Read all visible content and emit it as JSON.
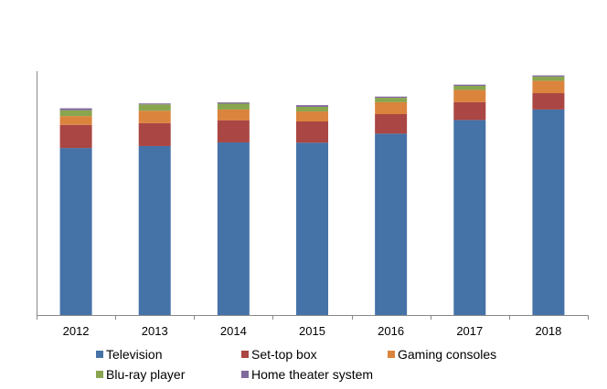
{
  "chart_data": {
    "type": "bar",
    "stacked": true,
    "title": "",
    "xlabel": "",
    "ylabel": "",
    "ylim": [
      0,
      100
    ],
    "y_axis_labels_shown": false,
    "grid": false,
    "legend_placement": "bottom",
    "categories": [
      "2012",
      "2013",
      "2014",
      "2015",
      "2016",
      "2017",
      "2018"
    ],
    "series": [
      {
        "name": "Television",
        "color": "#4572A7",
        "values": [
          68.5,
          69.3,
          70.8,
          70.7,
          74.4,
          80.0,
          84.3
        ]
      },
      {
        "name": "Set-top box",
        "color": "#AA4643",
        "values": [
          9.5,
          9.4,
          9.1,
          8.7,
          8.0,
          7.3,
          6.7
        ]
      },
      {
        "name": "Gaming consoles",
        "color": "#DB843D",
        "values": [
          3.6,
          5.1,
          4.4,
          4.1,
          4.9,
          5.0,
          5.1
        ]
      },
      {
        "name": "Blu-ray player",
        "color": "#89A54E",
        "values": [
          2.4,
          2.6,
          2.4,
          1.9,
          1.8,
          1.7,
          1.7
        ]
      },
      {
        "name": "Home theater system",
        "color": "#80699B",
        "values": [
          0.8,
          0.4,
          0.5,
          0.7,
          0.5,
          0.5,
          0.5
        ]
      }
    ]
  }
}
